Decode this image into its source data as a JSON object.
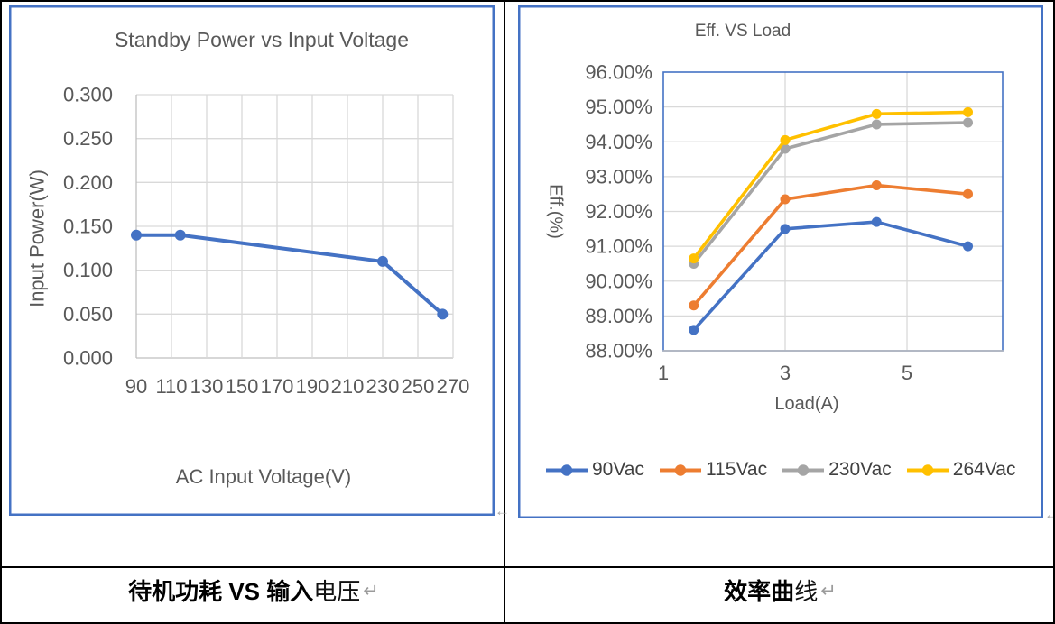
{
  "captions": {
    "left": {
      "text_bold": "待机功耗 VS 输入",
      "text_regular": "电压",
      "paragraph_mark": "↵"
    },
    "right": {
      "text_bold": "效率曲",
      "text_regular": "线",
      "paragraph_mark": "↵"
    }
  },
  "anchor_marks": {
    "left_chart": "←",
    "right_chart": "←"
  },
  "colors": {
    "frame_blue": "#4472C4",
    "grid": "#D9D9D9",
    "axis": "#BFBFBF",
    "tick_text": "#595959",
    "title_text": "#595959",
    "legend_text": "#404040"
  },
  "chart_data": [
    {
      "type": "line",
      "title": "Standby Power vs Input Voltage",
      "xlabel": "AC Input Voltage(V)",
      "ylabel": "Input Power(W)",
      "x": [
        90,
        115,
        230,
        264
      ],
      "series": [
        {
          "name": "Standby Power",
          "color": "#4472C4",
          "values": [
            0.14,
            0.14,
            0.11,
            0.05
          ]
        }
      ],
      "xlim": [
        90,
        270
      ],
      "ylim": [
        0,
        0.3
      ],
      "xticks": [
        {
          "value": 90,
          "label": "90"
        },
        {
          "value": 110,
          "label": "110"
        },
        {
          "value": 130,
          "label": "130"
        },
        {
          "value": 150,
          "label": "150"
        },
        {
          "value": 170,
          "label": "170"
        },
        {
          "value": 190,
          "label": "190"
        },
        {
          "value": 210,
          "label": "210"
        },
        {
          "value": 230,
          "label": "230"
        },
        {
          "value": 250,
          "label": "250"
        },
        {
          "value": 270,
          "label": "270"
        }
      ],
      "yticks": [
        {
          "value": 0,
          "label": "0.000"
        },
        {
          "value": 0.05,
          "label": "0.050"
        },
        {
          "value": 0.1,
          "label": "0.100"
        },
        {
          "value": 0.15,
          "label": "0.150"
        },
        {
          "value": 0.2,
          "label": "0.200"
        },
        {
          "value": 0.25,
          "label": "0.250"
        },
        {
          "value": 0.3,
          "label": "0.300"
        }
      ],
      "grid": true,
      "legend": false
    },
    {
      "type": "line",
      "title": "Eff. VS Load",
      "xlabel": "Load(A)",
      "ylabel": "Eff.(%)",
      "x": [
        1.5,
        3,
        4.5,
        6
      ],
      "series": [
        {
          "name": "90Vac",
          "color": "#4472C4",
          "values": [
            88.6,
            91.5,
            91.7,
            91.0
          ]
        },
        {
          "name": "115Vac",
          "color": "#ED7D31",
          "values": [
            89.3,
            92.35,
            92.75,
            92.5
          ]
        },
        {
          "name": "230Vac",
          "color": "#A5A5A5",
          "values": [
            90.5,
            93.8,
            94.5,
            94.55
          ]
        },
        {
          "name": "264Vac",
          "color": "#FFC000",
          "values": [
            90.65,
            94.05,
            94.8,
            94.85
          ]
        }
      ],
      "xlim": [
        1,
        6.57
      ],
      "ylim": [
        88,
        96
      ],
      "xticks": [
        {
          "value": 1,
          "label": "1"
        },
        {
          "value": 3,
          "label": "3"
        },
        {
          "value": 5,
          "label": "5"
        }
      ],
      "yticks": [
        {
          "value": 88,
          "label": "88.00%"
        },
        {
          "value": 89,
          "label": "89.00%"
        },
        {
          "value": 90,
          "label": "90.00%"
        },
        {
          "value": 91,
          "label": "91.00%"
        },
        {
          "value": 92,
          "label": "92.00%"
        },
        {
          "value": 93,
          "label": "93.00%"
        },
        {
          "value": 94,
          "label": "94.00%"
        },
        {
          "value": 95,
          "label": "95.00%"
        },
        {
          "value": 96,
          "label": "96.00%"
        }
      ],
      "grid": true,
      "legend": true,
      "legend_position": "bottom"
    }
  ]
}
